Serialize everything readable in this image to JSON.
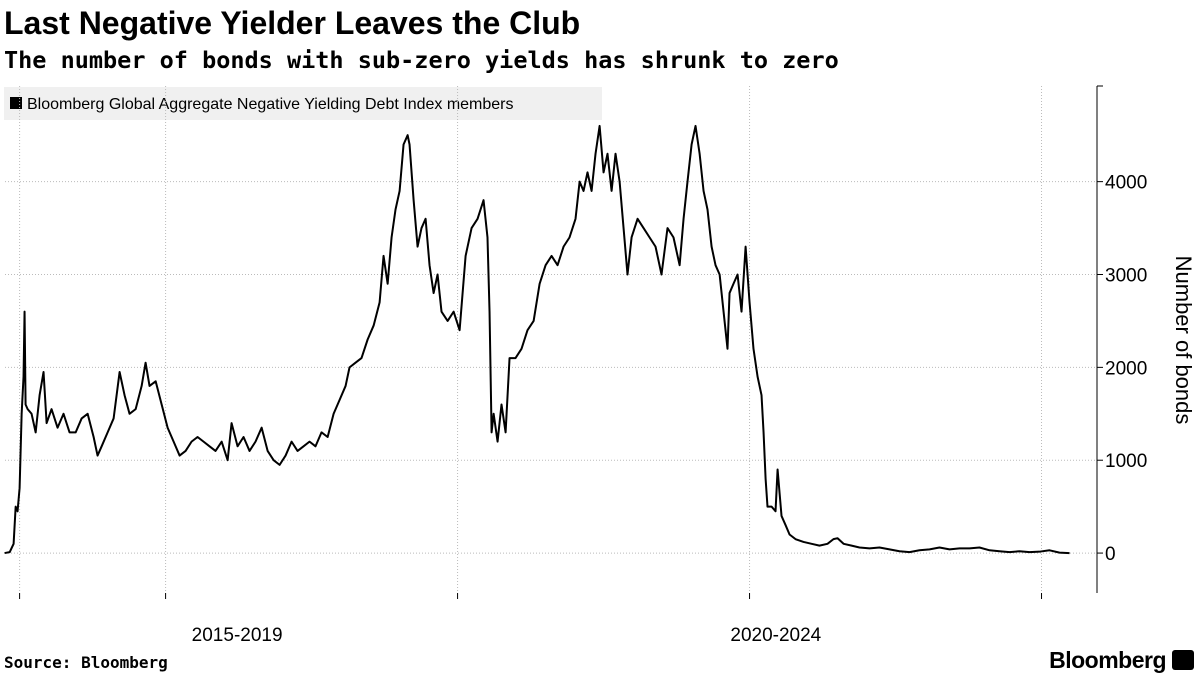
{
  "chart_data": {
    "type": "line",
    "title": "Last Negative Yielder Leaves the Club",
    "subtitle": "The number of bonds with sub-zero yields has shrunk to zero",
    "y_label": "Number of bonds",
    "source": "Source: Bloomberg",
    "logo": "Bloomberg",
    "xlim": [
      2016.9,
      2024.38
    ],
    "xgrid": [
      2017,
      2018,
      2020,
      2022,
      2024
    ],
    "xticks": [
      {
        "value": 2018.49,
        "label": "2015-2019"
      },
      {
        "value": 2022.18,
        "label": "2020-2024"
      }
    ],
    "ylim": [
      -430,
      5030
    ],
    "yticks": [
      0,
      1000,
      2000,
      3000,
      4000
    ],
    "grid": true,
    "legend": "top-left",
    "x": [
      2016.897,
      2016.932,
      2016.959,
      2016.973,
      2016.986,
      2017.0,
      2017.014,
      2017.027,
      2017.034,
      2017.041,
      2017.055,
      2017.082,
      2017.11,
      2017.137,
      2017.164,
      2017.185,
      2017.219,
      2017.26,
      2017.301,
      2017.342,
      2017.384,
      2017.425,
      2017.466,
      2017.507,
      2017.534,
      2017.562,
      2017.603,
      2017.644,
      2017.685,
      2017.719,
      2017.753,
      2017.795,
      2017.836,
      2017.863,
      2017.89,
      2017.932,
      2017.973,
      2018.014,
      2018.055,
      2018.096,
      2018.137,
      2018.178,
      2018.219,
      2018.26,
      2018.301,
      2018.342,
      2018.384,
      2018.425,
      2018.452,
      2018.493,
      2018.534,
      2018.575,
      2018.616,
      2018.658,
      2018.699,
      2018.74,
      2018.781,
      2018.822,
      2018.863,
      2018.904,
      2018.945,
      2018.986,
      2019.027,
      2019.068,
      2019.11,
      2019.151,
      2019.192,
      2019.233,
      2019.26,
      2019.301,
      2019.342,
      2019.384,
      2019.425,
      2019.466,
      2019.493,
      2019.521,
      2019.548,
      2019.575,
      2019.603,
      2019.63,
      2019.658,
      2019.671,
      2019.699,
      2019.726,
      2019.753,
      2019.781,
      2019.808,
      2019.836,
      2019.863,
      2019.89,
      2019.932,
      2019.973,
      2020.014,
      2020.055,
      2020.096,
      2020.137,
      2020.178,
      2020.205,
      2020.219,
      2020.233,
      2020.247,
      2020.274,
      2020.301,
      2020.329,
      2020.356,
      2020.397,
      2020.438,
      2020.479,
      2020.521,
      2020.562,
      2020.603,
      2020.644,
      2020.685,
      2020.726,
      2020.767,
      2020.808,
      2020.836,
      2020.863,
      2020.89,
      2020.918,
      2020.945,
      2020.973,
      2021.0,
      2021.027,
      2021.055,
      2021.082,
      2021.11,
      2021.137,
      2021.164,
      2021.192,
      2021.233,
      2021.274,
      2021.315,
      2021.356,
      2021.397,
      2021.438,
      2021.479,
      2021.521,
      2021.548,
      2021.575,
      2021.603,
      2021.63,
      2021.658,
      2021.685,
      2021.712,
      2021.74,
      2021.767,
      2021.795,
      2021.822,
      2021.849,
      2021.863,
      2021.89,
      2021.918,
      2021.945,
      2021.973,
      2022.0,
      2022.027,
      2022.055,
      2022.082,
      2022.096,
      2022.11,
      2022.123,
      2022.151,
      2022.178,
      2022.192,
      2022.219,
      2022.247,
      2022.274,
      2022.315,
      2022.37,
      2022.425,
      2022.479,
      2022.534,
      2022.575,
      2022.603,
      2022.644,
      2022.699,
      2022.753,
      2022.822,
      2022.89,
      2022.959,
      2023.027,
      2023.096,
      2023.164,
      2023.233,
      2023.301,
      2023.37,
      2023.438,
      2023.507,
      2023.575,
      2023.644,
      2023.712,
      2023.781,
      2023.849,
      2023.918,
      2023.986,
      2024.055,
      2024.123,
      2024.192
    ],
    "series": [
      {
        "name": "Bloomberg Global Aggregate Negative Yielding Debt Index members",
        "color": "#000000",
        "values": [
          0,
          10,
          100,
          500,
          450,
          700,
          1500,
          1900,
          2600,
          1600,
          1550,
          1500,
          1300,
          1700,
          1950,
          1400,
          1550,
          1350,
          1500,
          1300,
          1300,
          1450,
          1500,
          1250,
          1050,
          1150,
          1300,
          1450,
          1950,
          1700,
          1500,
          1550,
          1800,
          2050,
          1800,
          1850,
          1600,
          1350,
          1200,
          1050,
          1100,
          1200,
          1250,
          1200,
          1150,
          1100,
          1200,
          1000,
          1400,
          1150,
          1250,
          1100,
          1200,
          1350,
          1100,
          1000,
          950,
          1050,
          1200,
          1100,
          1150,
          1200,
          1150,
          1300,
          1250,
          1500,
          1650,
          1800,
          2000,
          2050,
          2100,
          2300,
          2450,
          2700,
          3200,
          2900,
          3400,
          3700,
          3900,
          4400,
          4500,
          4400,
          3800,
          3300,
          3500,
          3600,
          3100,
          2800,
          3000,
          2600,
          2500,
          2600,
          2400,
          3200,
          3500,
          3600,
          3800,
          3400,
          2600,
          1300,
          1500,
          1200,
          1600,
          1300,
          2100,
          2100,
          2200,
          2400,
          2500,
          2900,
          3100,
          3200,
          3100,
          3300,
          3400,
          3600,
          4000,
          3900,
          4100,
          3900,
          4300,
          4600,
          4100,
          4300,
          3900,
          4300,
          4000,
          3500,
          3000,
          3400,
          3600,
          3500,
          3400,
          3300,
          3000,
          3500,
          3400,
          3100,
          3600,
          4000,
          4400,
          4600,
          4300,
          3900,
          3700,
          3300,
          3100,
          3000,
          2600,
          2200,
          2800,
          2900,
          3000,
          2600,
          3300,
          2700,
          2200,
          1900,
          1700,
          1300,
          800,
          500,
          500,
          450,
          900,
          400,
          300,
          200,
          150,
          120,
          100,
          80,
          100,
          150,
          160,
          100,
          80,
          60,
          50,
          60,
          40,
          20,
          10,
          30,
          40,
          60,
          40,
          50,
          50,
          60,
          30,
          20,
          10,
          20,
          10,
          15,
          30,
          5,
          0
        ]
      }
    ]
  }
}
